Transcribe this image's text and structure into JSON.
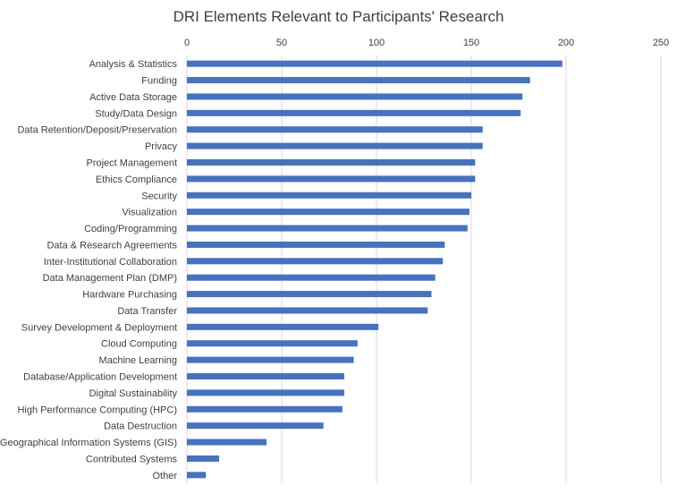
{
  "chart_data": {
    "type": "bar",
    "orientation": "horizontal",
    "title": "DRI Elements Relevant to Participants' Research",
    "xlabel": "",
    "ylabel": "",
    "xlim": [
      0,
      250
    ],
    "x_ticks": [
      "0",
      "50",
      "100",
      "150",
      "200",
      "250"
    ],
    "x_axis_position": "top",
    "grid": true,
    "legend": "none",
    "bar_color": "#4472C4",
    "categories": [
      "Analysis & Statistics",
      "Funding",
      "Active Data Storage",
      "Study/Data Design",
      "Data Retention/Deposit/Preservation",
      "Privacy",
      "Project Management",
      "Ethics Compliance",
      "Security",
      "Visualization",
      "Coding/Programming",
      "Data & Research Agreements",
      "Inter-Institutional Collaboration",
      "Data Management Plan (DMP)",
      "Hardware Purchasing",
      "Data Transfer",
      "Survey Development & Deployment",
      "Cloud Computing",
      "Machine Learning",
      "Database/Application Development",
      "Digital Sustainability",
      "High Performance Computing (HPC)",
      "Data Destruction",
      "Geographical Information Systems (GIS)",
      "Contributed Systems",
      "Other"
    ],
    "values": [
      198,
      181,
      177,
      176,
      156,
      156,
      152,
      152,
      150,
      149,
      148,
      136,
      135,
      131,
      129,
      127,
      101,
      90,
      88,
      83,
      83,
      82,
      72,
      42,
      17,
      10
    ]
  }
}
